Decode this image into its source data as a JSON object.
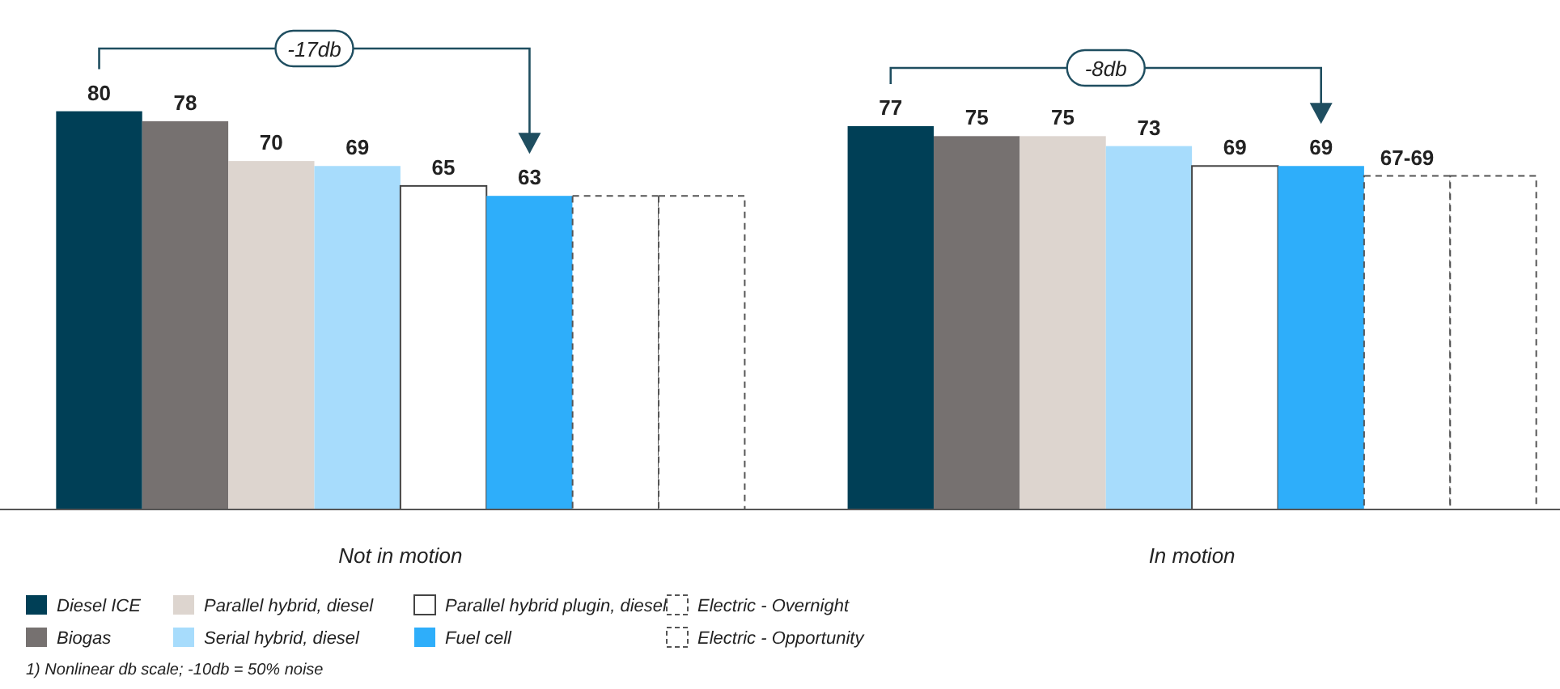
{
  "chart_data": {
    "type": "bar",
    "categories": [
      "Not in motion",
      "In motion"
    ],
    "legend": "bottom left",
    "series": [
      {
        "name": "Diesel ICE",
        "color": "#003f56",
        "values": [
          80,
          77
        ],
        "value_labels": [
          "80",
          "77"
        ]
      },
      {
        "name": "Biogas",
        "color": "#767170",
        "values": [
          78,
          75
        ],
        "value_labels": [
          "78",
          "75"
        ]
      },
      {
        "name": "Parallel hybrid, diesel",
        "color": "#ddd5cf",
        "values": [
          70,
          75
        ],
        "value_labels": [
          "70",
          "75"
        ]
      },
      {
        "name": "Serial hybrid, diesel",
        "color": "#a7dcfc",
        "values": [
          69,
          73
        ],
        "value_labels": [
          "69",
          "73"
        ]
      },
      {
        "name": "Parallel hybrid plugin, diesel",
        "color": "#ffffff",
        "values": [
          65,
          69
        ],
        "value_labels": [
          "65",
          "69"
        ]
      },
      {
        "name": "Fuel cell",
        "color": "#2eaefa",
        "values": [
          63,
          69
        ],
        "value_labels": [
          "63",
          "69"
        ]
      },
      {
        "name": "Electric - Overnight",
        "color": "#ffffff",
        "line_style": "dashed",
        "values": [
          63,
          67
        ],
        "value_labels": [
          null,
          "67-69"
        ]
      },
      {
        "name": "Electric - Opportunity",
        "color": "#ffffff",
        "line_style": "dashed",
        "values": [
          63,
          67
        ],
        "value_labels": [
          null,
          null
        ]
      }
    ],
    "annotations": [
      "-17db",
      "-8db",
      "1) Nonlinear db scale; -10db = 50% noise"
    ]
  }
}
